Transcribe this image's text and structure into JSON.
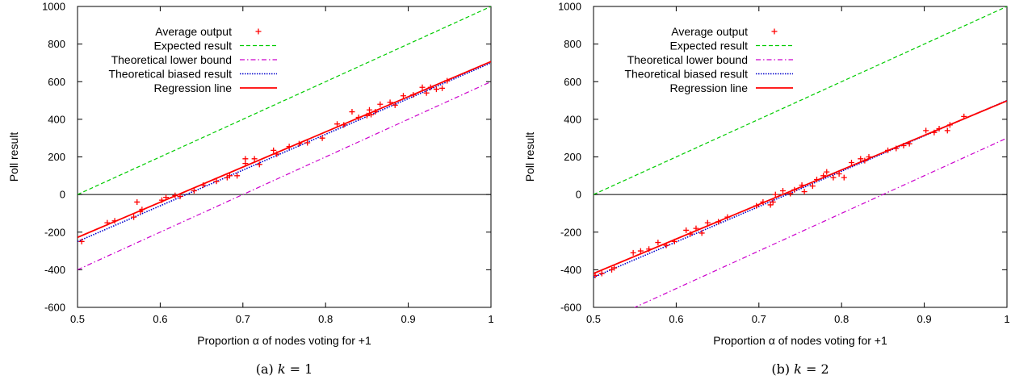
{
  "chart_data": [
    {
      "type": "scatter",
      "caption_prefix": "(a)",
      "caption_var": "k",
      "caption_eq": " = 1",
      "xlabel": "Proportion α of nodes voting for +1",
      "ylabel": "Poll result",
      "xlim": [
        0.5,
        1
      ],
      "ylim": [
        -600,
        1000
      ],
      "xticks": [
        "0.5",
        "0.6",
        "0.7",
        "0.8",
        "0.9",
        "1"
      ],
      "yticks": [
        "-600",
        "-400",
        "-200",
        "0",
        "200",
        "400",
        "600",
        "800",
        "1000"
      ],
      "grid": false,
      "legend_position": "top-left",
      "colors": {
        "scatter": "#ff0000",
        "expected": "#00cc00",
        "lower": "#cc00cc",
        "biased": "#0000cc",
        "regression": "#ff0000"
      },
      "series": [
        {
          "name": "Average output",
          "kind": "points",
          "x": [
            0.505,
            0.536,
            0.545,
            0.568,
            0.572,
            0.576,
            0.578,
            0.602,
            0.607,
            0.618,
            0.624,
            0.641,
            0.652,
            0.668,
            0.681,
            0.684,
            0.693,
            0.703,
            0.703,
            0.714,
            0.72,
            0.737,
            0.741,
            0.756,
            0.768,
            0.778,
            0.796,
            0.814,
            0.822,
            0.832,
            0.84,
            0.85,
            0.853,
            0.855,
            0.86,
            0.866,
            0.878,
            0.884,
            0.894,
            0.906,
            0.917,
            0.922,
            0.927,
            0.934,
            0.941,
            0.947
          ],
          "y": [
            -250,
            -150,
            -140,
            -120,
            -40,
            -90,
            -80,
            -30,
            -15,
            -5,
            -10,
            20,
            50,
            70,
            90,
            100,
            100,
            190,
            165,
            190,
            160,
            235,
            215,
            255,
            270,
            275,
            300,
            375,
            370,
            440,
            410,
            420,
            450,
            425,
            440,
            480,
            490,
            475,
            525,
            530,
            570,
            540,
            570,
            560,
            565,
            605
          ]
        },
        {
          "name": "Expected result",
          "kind": "line",
          "x": [
            0.5,
            1
          ],
          "y": [
            0,
            1000
          ]
        },
        {
          "name": "Theoretical lower bound",
          "kind": "line",
          "x": [
            0.5,
            1
          ],
          "y": [
            -400,
            600
          ]
        },
        {
          "name": "Theoretical biased result",
          "kind": "line",
          "x": [
            0.5,
            1
          ],
          "y": [
            -250,
            700
          ]
        },
        {
          "name": "Regression line",
          "kind": "line",
          "x": [
            0.5,
            1
          ],
          "y": [
            -228,
            707
          ]
        }
      ]
    },
    {
      "type": "scatter",
      "caption_prefix": "(b)",
      "caption_var": "k",
      "caption_eq": " = 2",
      "xlabel": "Proportion α of nodes voting for +1",
      "ylabel": "Poll result",
      "xlim": [
        0.5,
        1
      ],
      "ylim": [
        -600,
        1000
      ],
      "xticks": [
        "0.5",
        "0.6",
        "0.7",
        "0.8",
        "0.9",
        "1"
      ],
      "yticks": [
        "-600",
        "-400",
        "-200",
        "0",
        "200",
        "400",
        "600",
        "800",
        "1000"
      ],
      "grid": false,
      "legend_position": "top-left",
      "colors": {
        "scatter": "#ff0000",
        "expected": "#00cc00",
        "lower": "#cc00cc",
        "biased": "#0000cc",
        "regression": "#ff0000"
      },
      "series": [
        {
          "name": "Average output",
          "kind": "points",
          "x": [
            0.502,
            0.51,
            0.522,
            0.525,
            0.548,
            0.557,
            0.567,
            0.578,
            0.588,
            0.598,
            0.612,
            0.617,
            0.624,
            0.631,
            0.638,
            0.651,
            0.662,
            0.697,
            0.705,
            0.714,
            0.717,
            0.72,
            0.729,
            0.738,
            0.743,
            0.752,
            0.755,
            0.765,
            0.77,
            0.778,
            0.782,
            0.79,
            0.797,
            0.803,
            0.812,
            0.823,
            0.828,
            0.833,
            0.856,
            0.866,
            0.875,
            0.882,
            0.902,
            0.912,
            0.918,
            0.928,
            0.931,
            0.948
          ],
          "y": [
            -430,
            -420,
            -400,
            -390,
            -310,
            -300,
            -290,
            -255,
            -270,
            -250,
            -190,
            -210,
            -180,
            -205,
            -150,
            -145,
            -120,
            -60,
            -40,
            -55,
            -40,
            0,
            20,
            5,
            25,
            50,
            15,
            45,
            80,
            100,
            120,
            90,
            110,
            90,
            170,
            190,
            180,
            200,
            235,
            245,
            260,
            270,
            340,
            330,
            350,
            340,
            370,
            415
          ]
        },
        {
          "name": "Expected result",
          "kind": "line",
          "x": [
            0.5,
            1
          ],
          "y": [
            0,
            1000
          ]
        },
        {
          "name": "Theoretical lower bound",
          "kind": "line",
          "x": [
            0.5,
            1
          ],
          "y": [
            -700,
            300
          ]
        },
        {
          "name": "Theoretical biased result",
          "kind": "line",
          "x": [
            0.5,
            1
          ],
          "y": [
            -440,
            500
          ]
        },
        {
          "name": "Regression line",
          "kind": "line",
          "x": [
            0.5,
            1
          ],
          "y": [
            -420,
            498
          ]
        }
      ]
    }
  ]
}
